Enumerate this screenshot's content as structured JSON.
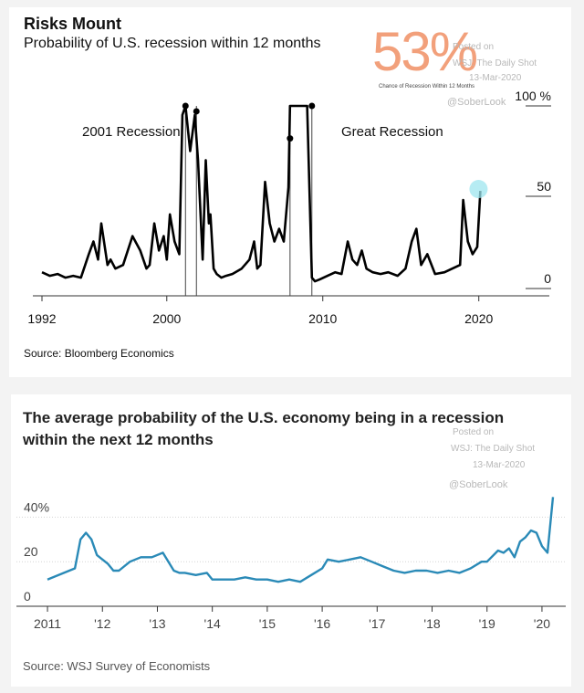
{
  "chart_data": [
    {
      "type": "line",
      "title": "Risks Mount",
      "subtitle": "Probability of U.S. recession within 12 months",
      "xlabel": "",
      "ylabel": "",
      "xlim": [
        1992,
        2023
      ],
      "ylim": [
        0,
        100
      ],
      "x_ticks": [
        "1992",
        "2000",
        "2010",
        "2020"
      ],
      "y_ticks": [
        "0",
        "50",
        "100 %"
      ],
      "grid": false,
      "color": "#000000",
      "highlight_value": "53%",
      "highlight_caption": "Chance of Recession Within 12 Months",
      "annotations": [
        "2001 Recession",
        "Great Recession"
      ],
      "source": "Source: Bloomberg Economics",
      "series": [
        {
          "x": [
            1992.0,
            1992.5,
            1993.0,
            1993.5,
            1994.0,
            1994.5,
            1995.0,
            1995.3,
            1995.6,
            1995.8,
            1996.2,
            1996.4,
            1996.7,
            1997.2,
            1997.8,
            1998.3,
            1998.7,
            1998.9,
            1999.2,
            1999.5,
            1999.8,
            2000.0,
            2000.2,
            2000.5,
            2000.8,
            2001.0,
            2001.2,
            2001.5,
            2001.8,
            2002.0,
            2002.3,
            2002.5,
            2002.7,
            2002.8,
            2003.0,
            2003.2,
            2003.5,
            2003.8,
            2004.2,
            2004.8,
            2005.3,
            2005.6,
            2005.8,
            2006.0,
            2006.3,
            2006.6,
            2006.9,
            2007.2,
            2007.5,
            2007.8,
            2007.9,
            2008.1,
            2008.5,
            2009.0,
            2009.3,
            2009.5,
            2009.8,
            2010.3,
            2010.8,
            2011.2,
            2011.6,
            2011.9,
            2012.2,
            2012.5,
            2012.8,
            2013.2,
            2013.7,
            2014.2,
            2014.8,
            2015.3,
            2015.7,
            2016.0,
            2016.3,
            2016.7,
            2017.2,
            2017.8,
            2018.3,
            2018.8,
            2019.0,
            2019.3,
            2019.6,
            2019.9,
            2020.1
          ],
          "y": [
            8,
            6,
            7,
            5,
            6,
            5,
            18,
            25,
            15,
            35,
            12,
            15,
            10,
            12,
            28,
            20,
            10,
            12,
            35,
            20,
            28,
            15,
            40,
            25,
            18,
            95,
            100,
            75,
            95,
            70,
            15,
            70,
            35,
            40,
            10,
            7,
            5,
            6,
            7,
            10,
            15,
            25,
            10,
            12,
            58,
            35,
            25,
            32,
            25,
            55,
            100,
            100,
            100,
            100,
            5,
            3,
            4,
            6,
            8,
            7,
            25,
            15,
            12,
            20,
            10,
            8,
            7,
            8,
            6,
            10,
            25,
            32,
            12,
            18,
            7,
            8,
            10,
            12,
            48,
            25,
            18,
            22,
            53
          ]
        }
      ]
    },
    {
      "type": "line",
      "title": "The average probability of the U.S. economy being in a recession within the next 12 months",
      "xlabel": "",
      "ylabel": "",
      "xlim": [
        2010.8,
        2020.3
      ],
      "ylim": [
        0,
        50
      ],
      "x_ticks": [
        "2011",
        "'12",
        "'13",
        "'14",
        "'15",
        "'16",
        "'17",
        "'18",
        "'19",
        "'20"
      ],
      "y_ticks": [
        "0",
        "20",
        "40%"
      ],
      "grid": true,
      "color": "#2a8ab7",
      "source": "Source: WSJ Survey of Economists",
      "series": [
        {
          "x": [
            2011.0,
            2011.1,
            2011.3,
            2011.5,
            2011.6,
            2011.7,
            2011.8,
            2011.9,
            2012.0,
            2012.1,
            2012.2,
            2012.3,
            2012.5,
            2012.7,
            2012.9,
            2013.1,
            2013.3,
            2013.4,
            2013.5,
            2013.7,
            2013.9,
            2014.0,
            2014.2,
            2014.4,
            2014.6,
            2014.8,
            2015.0,
            2015.2,
            2015.4,
            2015.6,
            2015.8,
            2016.0,
            2016.1,
            2016.3,
            2016.5,
            2016.7,
            2016.9,
            2017.1,
            2017.3,
            2017.5,
            2017.7,
            2017.9,
            2018.1,
            2018.3,
            2018.5,
            2018.7,
            2018.9,
            2019.0,
            2019.2,
            2019.3,
            2019.4,
            2019.5,
            2019.6,
            2019.7,
            2019.8,
            2019.9,
            2020.0,
            2020.1,
            2020.2
          ],
          "y": [
            12,
            13,
            15,
            17,
            30,
            33,
            30,
            23,
            21,
            19,
            16,
            16,
            20,
            22,
            22,
            24,
            16,
            15,
            15,
            14,
            15,
            12,
            12,
            12,
            13,
            12,
            12,
            11,
            12,
            11,
            14,
            17,
            21,
            20,
            21,
            22,
            20,
            18,
            16,
            15,
            16,
            16,
            15,
            16,
            15,
            17,
            20,
            20,
            25,
            24,
            26,
            22,
            29,
            31,
            34,
            33,
            27,
            24,
            49
          ]
        }
      ]
    }
  ],
  "watermark": {
    "posted": "Posted on",
    "source": "WSJ: The Daily Shot",
    "date": "13-Mar-2020",
    "handle": "@SoberLook"
  }
}
